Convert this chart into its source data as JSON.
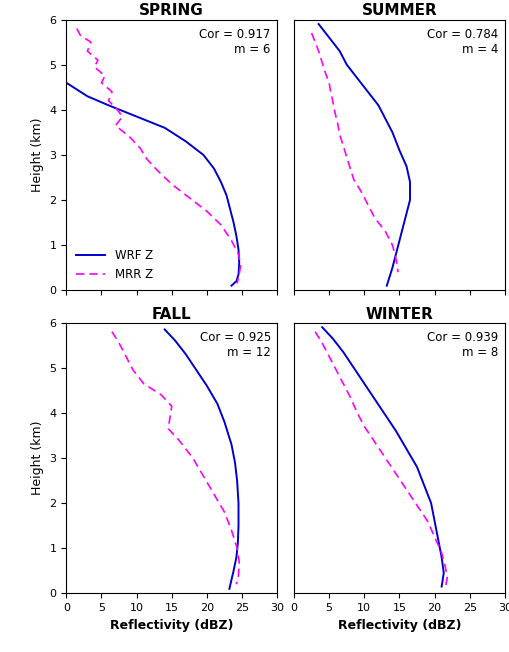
{
  "panels": [
    {
      "title": "SPRING",
      "cor": "0.917",
      "m": "6",
      "wrf": {
        "dbz": [
          0.0,
          1.0,
          3.0,
          6.0,
          10.0,
          14.0,
          17.0,
          19.5,
          21.0,
          22.0,
          22.8,
          23.3,
          23.8,
          24.2,
          24.5,
          24.6,
          24.5,
          24.2,
          23.5
        ],
        "z": [
          4.6,
          4.5,
          4.3,
          4.1,
          3.85,
          3.6,
          3.3,
          3.0,
          2.7,
          2.4,
          2.1,
          1.8,
          1.5,
          1.2,
          0.9,
          0.6,
          0.35,
          0.2,
          0.1
        ]
      },
      "mrr": {
        "dbz": [
          1.5,
          2.0,
          3.5,
          3.0,
          4.5,
          4.0,
          5.5,
          5.0,
          6.5,
          6.0,
          7.0,
          8.0,
          7.0,
          9.0,
          10.5,
          11.5,
          13.0,
          15.0,
          17.5,
          20.0,
          22.0,
          23.5,
          24.5,
          24.8,
          24.6,
          24.3
        ],
        "z": [
          5.8,
          5.65,
          5.5,
          5.3,
          5.1,
          4.95,
          4.75,
          4.6,
          4.4,
          4.2,
          4.05,
          3.85,
          3.65,
          3.4,
          3.15,
          2.9,
          2.65,
          2.35,
          2.05,
          1.75,
          1.45,
          1.1,
          0.8,
          0.55,
          0.35,
          0.15
        ]
      },
      "show_legend": true
    },
    {
      "title": "SUMMER",
      "cor": "0.784",
      "m": "4",
      "wrf": {
        "dbz": [
          3.5,
          4.5,
          5.5,
          6.5,
          7.5,
          9.0,
          10.5,
          12.0,
          13.0,
          14.0,
          15.0,
          16.0,
          16.5,
          16.5,
          16.0,
          15.5,
          15.0,
          14.5,
          14.0,
          13.5,
          13.2
        ],
        "z": [
          5.9,
          5.7,
          5.5,
          5.3,
          5.0,
          4.7,
          4.4,
          4.1,
          3.8,
          3.5,
          3.1,
          2.75,
          2.4,
          2.0,
          1.7,
          1.4,
          1.1,
          0.8,
          0.5,
          0.25,
          0.1
        ]
      },
      "mrr": {
        "dbz": [
          2.5,
          3.0,
          3.5,
          4.0,
          4.5,
          5.0,
          5.2,
          5.5,
          5.8,
          6.2,
          6.5,
          7.0,
          7.5,
          8.0,
          8.5,
          9.5,
          10.5,
          11.5,
          13.0,
          14.0,
          14.5,
          14.8
        ],
        "z": [
          5.7,
          5.5,
          5.3,
          5.05,
          4.8,
          4.6,
          4.4,
          4.2,
          3.95,
          3.7,
          3.45,
          3.2,
          2.95,
          2.7,
          2.45,
          2.2,
          1.9,
          1.6,
          1.3,
          1.0,
          0.7,
          0.4
        ]
      },
      "show_legend": false
    },
    {
      "title": "FALL",
      "cor": "0.925",
      "m": "12",
      "wrf": {
        "dbz": [
          14.0,
          15.5,
          17.0,
          18.5,
          20.0,
          21.5,
          22.5,
          23.5,
          24.0,
          24.3,
          24.5,
          24.5,
          24.4,
          24.2,
          23.8,
          23.5,
          23.2
        ],
        "z": [
          5.85,
          5.6,
          5.3,
          4.95,
          4.6,
          4.2,
          3.8,
          3.3,
          2.9,
          2.5,
          2.0,
          1.5,
          1.1,
          0.8,
          0.5,
          0.3,
          0.1
        ]
      },
      "mrr": {
        "dbz": [
          6.5,
          7.5,
          8.5,
          9.5,
          11.0,
          13.5,
          15.0,
          14.5,
          16.0,
          18.0,
          19.5,
          21.0,
          22.5,
          23.5,
          24.3,
          24.6,
          24.5,
          24.2
        ],
        "z": [
          5.8,
          5.55,
          5.25,
          4.95,
          4.65,
          4.4,
          4.15,
          3.65,
          3.4,
          3.0,
          2.6,
          2.2,
          1.8,
          1.4,
          1.0,
          0.7,
          0.4,
          0.2
        ]
      },
      "show_legend": false
    },
    {
      "title": "WINTER",
      "cor": "0.939",
      "m": "8",
      "wrf": {
        "dbz": [
          4.0,
          5.5,
          7.0,
          8.5,
          10.0,
          11.5,
          13.0,
          14.5,
          16.0,
          17.5,
          18.5,
          19.5,
          20.0,
          20.5,
          21.0,
          21.3,
          21.0
        ],
        "z": [
          5.9,
          5.65,
          5.35,
          5.0,
          4.65,
          4.3,
          3.95,
          3.6,
          3.2,
          2.8,
          2.4,
          2.0,
          1.6,
          1.2,
          0.8,
          0.45,
          0.15
        ]
      },
      "mrr": {
        "dbz": [
          3.0,
          4.0,
          5.0,
          6.0,
          7.0,
          8.0,
          9.0,
          10.0,
          11.5,
          13.0,
          14.5,
          16.0,
          17.5,
          19.0,
          20.0,
          21.0,
          21.5,
          21.8,
          21.5
        ],
        "z": [
          5.8,
          5.55,
          5.25,
          4.95,
          4.65,
          4.35,
          4.0,
          3.7,
          3.35,
          3.0,
          2.65,
          2.3,
          1.95,
          1.6,
          1.25,
          0.9,
          0.6,
          0.35,
          0.1
        ]
      },
      "show_legend": false
    }
  ],
  "wrf_color": "#0000cd",
  "mrr_color": "#ff00ff",
  "xlim": [
    0,
    30
  ],
  "ylim": [
    0,
    6
  ],
  "xticks": [
    0,
    5,
    10,
    15,
    20,
    25,
    30
  ],
  "yticks": [
    0,
    1,
    2,
    3,
    4,
    5,
    6
  ],
  "xlabel": "Reflectivity (dBZ)",
  "ylabel": "Height (km)"
}
